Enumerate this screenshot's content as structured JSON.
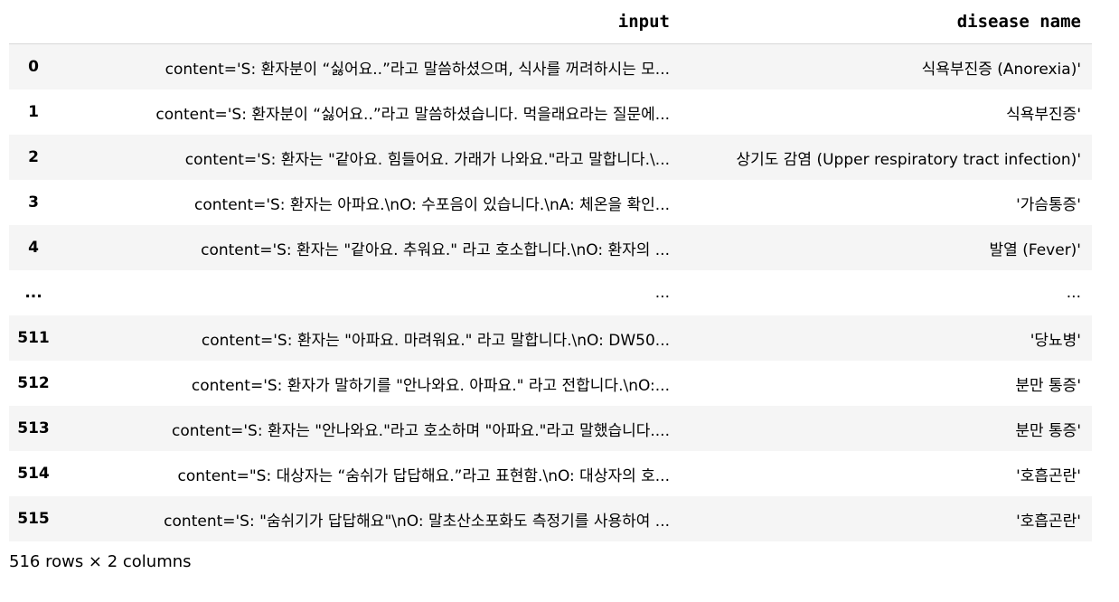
{
  "table": {
    "columns": [
      "",
      "input",
      "disease name"
    ],
    "rows": [
      {
        "index": "0",
        "input": "content='S: 환자분이 “싫어요..”라고 말씀하셨으며, 식사를 꺼려하시는 모...",
        "disease": "식욕부진증 (Anorexia)'"
      },
      {
        "index": "1",
        "input": "content='S: 환자분이 “싫어요..”라고 말씀하셨습니다. 먹을래요라는 질문에...",
        "disease": "식욕부진증'"
      },
      {
        "index": "2",
        "input": "content='S: 환자는 \"같아요. 힘들어요. 가래가 나와요.\"라고 말합니다.\\...",
        "disease": "상기도 감염 (Upper respiratory tract infection)'"
      },
      {
        "index": "3",
        "input": "content='S: 환자는 아파요.\\nO: 수포음이 있습니다.\\nA: 체온을 확인...",
        "disease": "'가슴통증'"
      },
      {
        "index": "4",
        "input": "content='S: 환자는 \"같아요. 추워요.\" 라고 호소합니다.\\nO: 환자의 ...",
        "disease": "발열 (Fever)'"
      },
      {
        "index": "...",
        "input": "...",
        "disease": "..."
      },
      {
        "index": "511",
        "input": "content='S: 환자는 \"아파요. 마려워요.\" 라고 말합니다.\\nO: DW50...",
        "disease": "'당뇨병'"
      },
      {
        "index": "512",
        "input": "content='S: 환자가 말하기를 \"안나와요. 아파요.\" 라고 전합니다.\\nO:...",
        "disease": "분만 통증'"
      },
      {
        "index": "513",
        "input": "content='S: 환자는 \"안나와요.\"라고 호소하며 \"아파요.\"라고 말했습니다....",
        "disease": "분만 통증'"
      },
      {
        "index": "514",
        "input": "content=\"S: 대상자는 “숨쉬가 답답해요.”라고 표현함.\\nO: 대상자의 호...",
        "disease": "'호흡곤란'"
      },
      {
        "index": "515",
        "input": "content='S: \"숨쉬기가 답답해요\"\\nO: 말초산소포화도 측정기를 사용하여 ...",
        "disease": "'호흡곤란'"
      }
    ]
  },
  "footer": {
    "shape_text": "516 rows × 2 columns"
  }
}
